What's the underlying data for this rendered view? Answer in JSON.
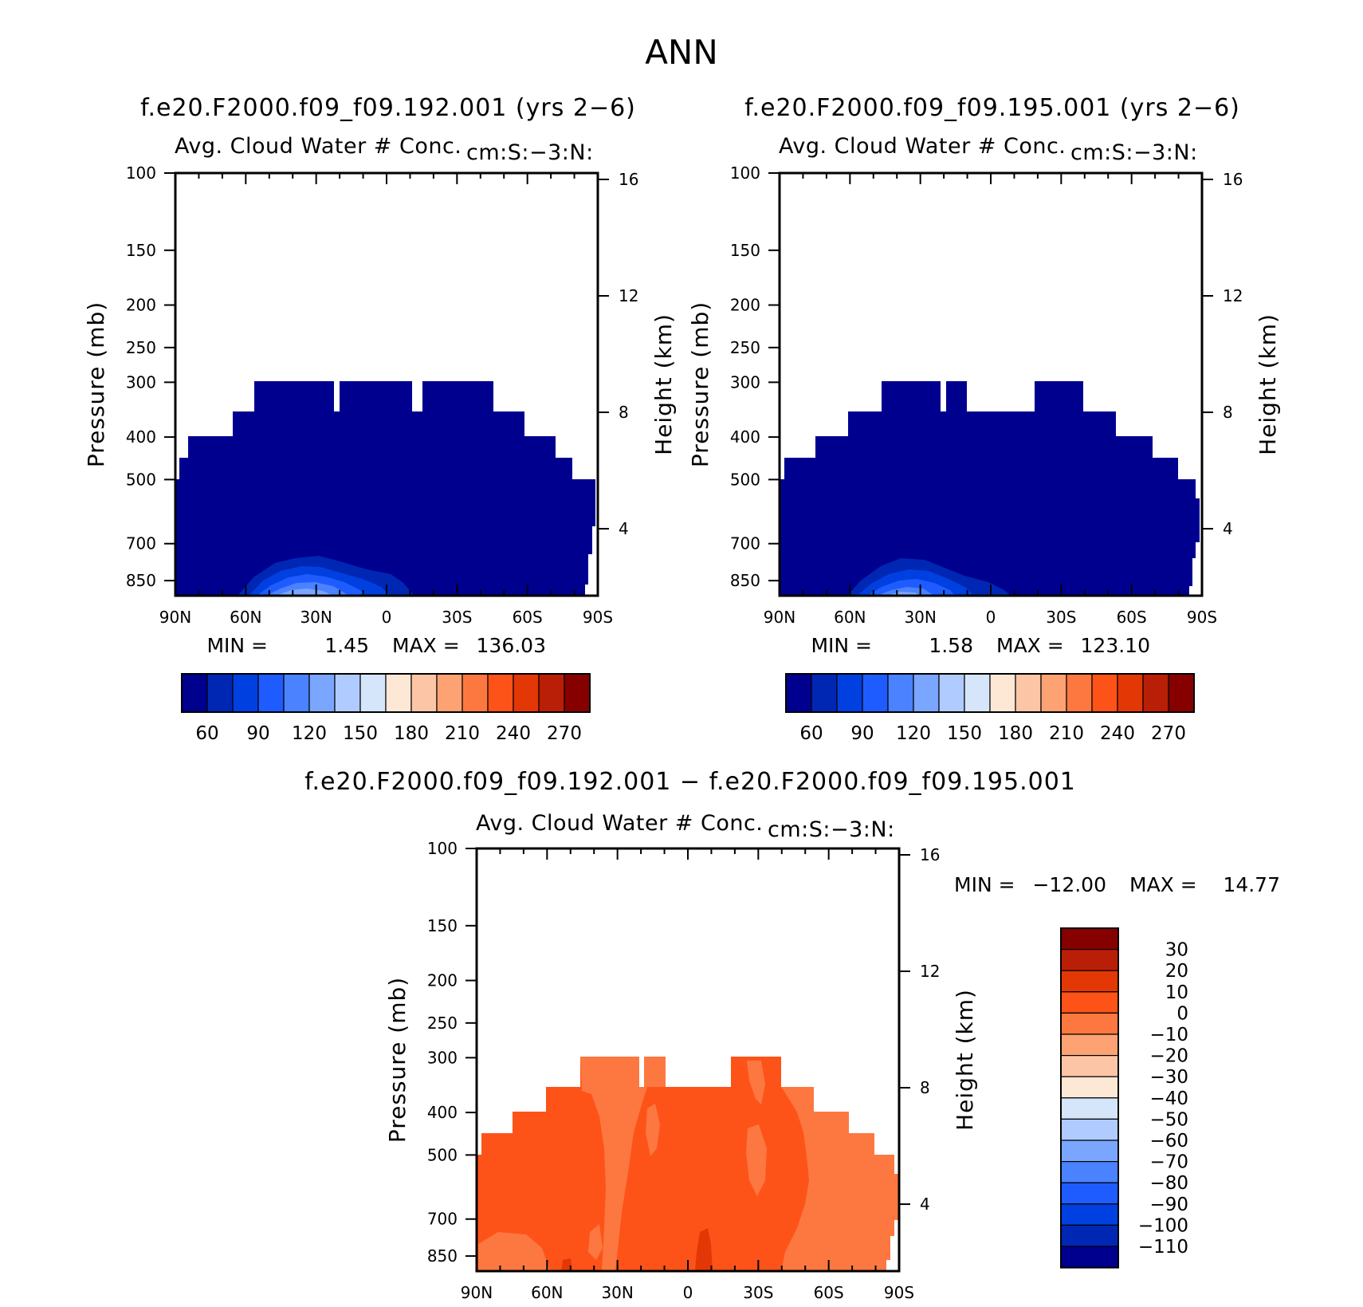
{
  "chart_data": {
    "type": "contour",
    "title": "ANN",
    "colors": {
      "top_panels": [
        "#00008f",
        "#0027b3",
        "#0040e0",
        "#1e5cff",
        "#4a82ff",
        "#7aa6ff",
        "#b0cbff",
        "#d6e6fa",
        "#fde8d6",
        "#fcc6a6",
        "#fca273",
        "#fd7840",
        "#fd5319",
        "#e33805",
        "#b91f06",
        "#870000"
      ],
      "diff_panel": [
        "#870000",
        "#b91f06",
        "#e33805",
        "#fd5319",
        "#fd7840",
        "#fca273",
        "#fcc6a6",
        "#fde8d6",
        "#d6e6fa",
        "#b0cbff",
        "#7aa6ff",
        "#4a82ff",
        "#1e5cff",
        "#0040e0",
        "#0027b3",
        "#00008f"
      ]
    },
    "panels": [
      {
        "case": "f.e20.F2000.f09_f09.192.001 (yrs 2−6)",
        "variable": "Avg. Cloud Water # Conc.",
        "units": "cm:S:−3:N:",
        "ylabel": "Pressure (mb)",
        "ylabel_right": "Height (km)",
        "y_ticks": [
          "100",
          "150",
          "200",
          "250",
          "300",
          "400",
          "500",
          "700",
          "850"
        ],
        "y_ticks_right": [
          "16",
          "12",
          "8",
          "4"
        ],
        "x_ticks": [
          "90N",
          "60N",
          "30N",
          "0",
          "30S",
          "60S",
          "90S"
        ],
        "min_label": "MIN =",
        "min_value": "1.45",
        "max_label": "MAX =",
        "max_value": "136.03",
        "colorbar_labels": [
          "60",
          "90",
          "120",
          "150",
          "180",
          "210",
          "240",
          "270"
        ]
      },
      {
        "case": "f.e20.F2000.f09_f09.195.001 (yrs 2−6)",
        "variable": "Avg. Cloud Water # Conc.",
        "units": "cm:S:−3:N:",
        "ylabel": "Pressure (mb)",
        "ylabel_right": "Height (km)",
        "y_ticks": [
          "100",
          "150",
          "200",
          "250",
          "300",
          "400",
          "500",
          "700",
          "850"
        ],
        "y_ticks_right": [
          "16",
          "12",
          "8",
          "4"
        ],
        "x_ticks": [
          "90N",
          "60N",
          "30N",
          "0",
          "30S",
          "60S",
          "90S"
        ],
        "min_label": "MIN =",
        "min_value": "1.58",
        "max_label": "MAX =",
        "max_value": "123.10",
        "colorbar_labels": [
          "60",
          "90",
          "120",
          "150",
          "180",
          "210",
          "240",
          "270"
        ]
      },
      {
        "case": "f.e20.F2000.f09_f09.192.001 − f.e20.F2000.f09_f09.195.001",
        "variable": "Avg. Cloud Water # Conc.",
        "units": "cm:S:−3:N:",
        "ylabel": "Pressure (mb)",
        "ylabel_right": "Height (km)",
        "y_ticks": [
          "100",
          "150",
          "200",
          "250",
          "300",
          "400",
          "500",
          "700",
          "850"
        ],
        "y_ticks_right": [
          "16",
          "12",
          "8",
          "4"
        ],
        "x_ticks": [
          "90N",
          "60N",
          "30N",
          "0",
          "30S",
          "60S",
          "90S"
        ],
        "min_label": "MIN =",
        "min_value": "−12.00",
        "max_label": "MAX =",
        "max_value": "14.77",
        "colorbar_labels": [
          "30",
          "20",
          "10",
          "0",
          "−10",
          "−20",
          "−30",
          "−40",
          "−50",
          "−60",
          "−70",
          "−80",
          "−90",
          "−100",
          "−110"
        ]
      }
    ]
  }
}
